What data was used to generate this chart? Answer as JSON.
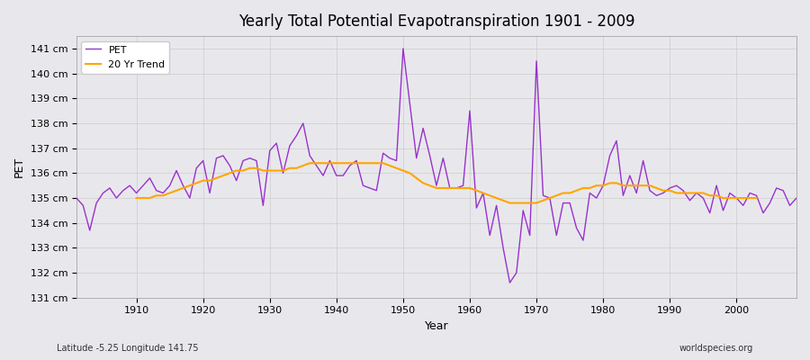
{
  "title": "Yearly Total Potential Evapotranspiration 1901 - 2009",
  "xlabel": "Year",
  "ylabel": "PET",
  "subtitle_left": "Latitude -5.25 Longitude 141.75",
  "subtitle_right": "worldspecies.org",
  "pet_color": "#9932CC",
  "trend_color": "#FFA500",
  "background_color": "#E8E8EC",
  "grid_color": "#CCCCCC",
  "ylim": [
    131,
    141.5
  ],
  "ytick_labels": [
    "131 cm",
    "132 cm",
    "133 cm",
    "134 cm",
    "135 cm",
    "136 cm",
    "137 cm",
    "138 cm",
    "139 cm",
    "140 cm",
    "141 cm"
  ],
  "ytick_values": [
    131,
    132,
    133,
    134,
    135,
    136,
    137,
    138,
    139,
    140,
    141
  ],
  "years": [
    1901,
    1902,
    1903,
    1904,
    1905,
    1906,
    1907,
    1908,
    1909,
    1910,
    1911,
    1912,
    1913,
    1914,
    1915,
    1916,
    1917,
    1918,
    1919,
    1920,
    1921,
    1922,
    1923,
    1924,
    1925,
    1926,
    1927,
    1928,
    1929,
    1930,
    1931,
    1932,
    1933,
    1934,
    1935,
    1936,
    1937,
    1938,
    1939,
    1940,
    1941,
    1942,
    1943,
    1944,
    1945,
    1946,
    1947,
    1948,
    1949,
    1950,
    1951,
    1952,
    1953,
    1954,
    1955,
    1956,
    1957,
    1958,
    1959,
    1960,
    1961,
    1962,
    1963,
    1964,
    1965,
    1966,
    1967,
    1968,
    1969,
    1970,
    1971,
    1972,
    1973,
    1974,
    1975,
    1976,
    1977,
    1978,
    1979,
    1980,
    1981,
    1982,
    1983,
    1984,
    1985,
    1986,
    1987,
    1988,
    1989,
    1990,
    1991,
    1992,
    1993,
    1994,
    1995,
    1996,
    1997,
    1998,
    1999,
    2000,
    2001,
    2002,
    2003,
    2004,
    2005,
    2006,
    2007,
    2008,
    2009
  ],
  "pet_values": [
    135.0,
    134.7,
    133.7,
    134.8,
    135.2,
    135.4,
    135.0,
    135.3,
    135.5,
    135.2,
    135.5,
    135.8,
    135.3,
    135.2,
    135.5,
    136.1,
    135.5,
    135.0,
    136.2,
    136.5,
    135.2,
    136.6,
    136.7,
    136.3,
    135.7,
    136.5,
    136.6,
    136.5,
    134.7,
    136.9,
    137.2,
    136.0,
    137.1,
    137.5,
    138.0,
    136.7,
    136.3,
    135.9,
    136.5,
    135.9,
    135.9,
    136.3,
    136.5,
    135.5,
    135.4,
    135.3,
    136.8,
    136.6,
    136.5,
    141.0,
    138.8,
    136.6,
    137.8,
    136.7,
    135.5,
    136.6,
    135.4,
    135.4,
    135.5,
    138.5,
    134.6,
    135.2,
    133.5,
    134.7,
    133.0,
    131.6,
    132.0,
    134.5,
    133.5,
    140.5,
    135.1,
    135.0,
    133.5,
    134.8,
    134.8,
    133.8,
    133.3,
    135.2,
    135.0,
    135.5,
    136.7,
    137.3,
    135.1,
    135.9,
    135.2,
    136.5,
    135.3,
    135.1,
    135.2,
    135.4,
    135.5,
    135.3,
    134.9,
    135.2,
    135.0,
    134.4,
    135.5,
    134.5,
    135.2,
    135.0,
    134.7,
    135.2,
    135.1,
    134.4,
    134.8,
    135.4,
    135.3,
    134.7,
    135.0
  ],
  "trend_values": [
    null,
    null,
    null,
    null,
    null,
    null,
    null,
    null,
    null,
    135.0,
    135.0,
    135.0,
    135.1,
    135.1,
    135.2,
    135.3,
    135.4,
    135.5,
    135.6,
    135.7,
    135.7,
    135.8,
    135.9,
    136.0,
    136.1,
    136.1,
    136.2,
    136.2,
    136.1,
    136.1,
    136.1,
    136.1,
    136.2,
    136.2,
    136.3,
    136.4,
    136.4,
    136.4,
    136.4,
    136.4,
    136.4,
    136.4,
    136.4,
    136.4,
    136.4,
    136.4,
    136.4,
    136.3,
    136.2,
    136.1,
    136.0,
    135.8,
    135.6,
    135.5,
    135.4,
    135.4,
    135.4,
    135.4,
    135.4,
    135.4,
    135.3,
    135.2,
    135.1,
    135.0,
    134.9,
    134.8,
    134.8,
    134.8,
    134.8,
    134.8,
    134.9,
    135.0,
    135.1,
    135.2,
    135.2,
    135.3,
    135.4,
    135.4,
    135.5,
    135.5,
    135.6,
    135.6,
    135.5,
    135.5,
    135.5,
    135.5,
    135.5,
    135.4,
    135.3,
    135.3,
    135.2,
    135.2,
    135.2,
    135.2,
    135.2,
    135.1,
    135.1,
    135.0,
    135.0,
    135.0,
    135.0,
    135.0,
    135.0,
    null,
    null,
    null,
    null,
    null,
    null
  ]
}
